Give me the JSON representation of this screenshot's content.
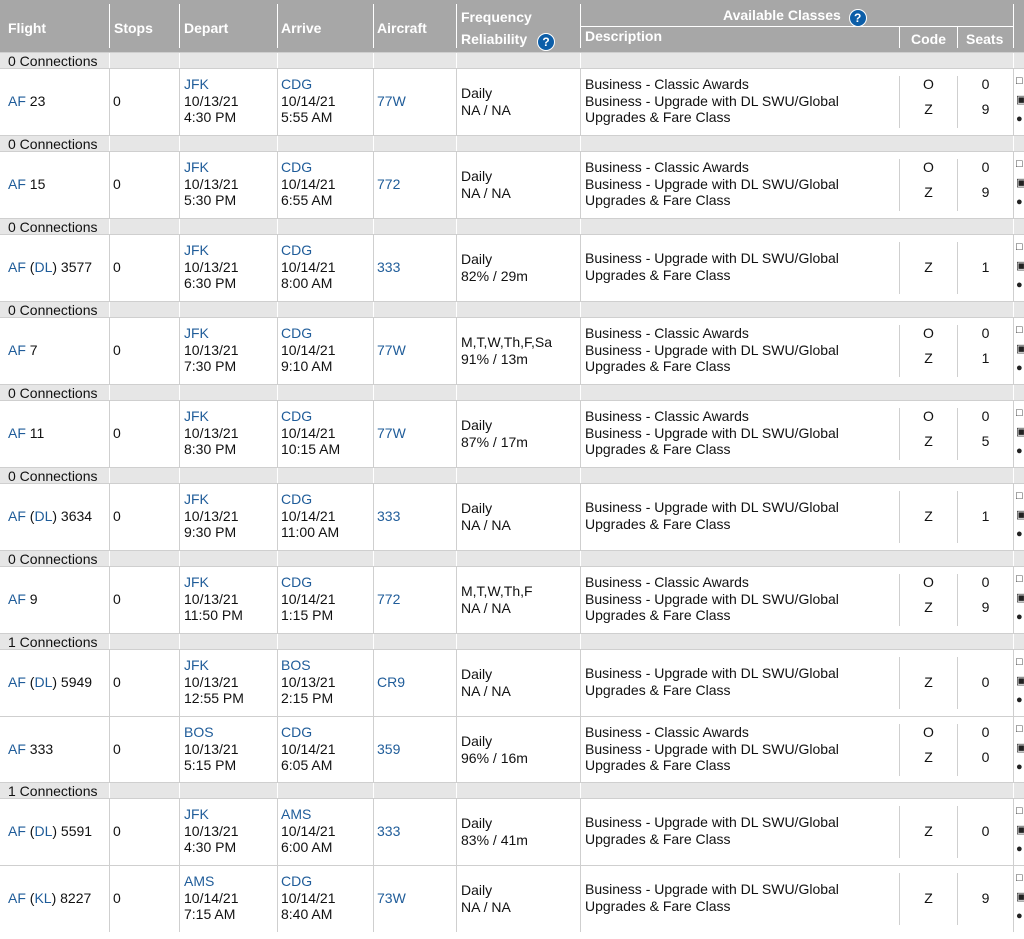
{
  "header": {
    "flight": "Flight",
    "stops": "Stops",
    "depart": "Depart",
    "arrive": "Arrive",
    "aircraft": "Aircraft",
    "frequency": "Frequency",
    "reliability": "Reliability",
    "available_classes": "Available Classes",
    "description": "Description",
    "code": "Code",
    "seats": "Seats",
    "help_glyph": "?"
  },
  "groups": [
    {
      "label": "0 Connections",
      "flights": [
        {
          "airline": "AF",
          "operator": "",
          "number": "23",
          "stops": "0",
          "dep_airport": "JFK",
          "dep_date": "10/13/21",
          "dep_time": "4:30 PM",
          "arr_airport": "CDG",
          "arr_date": "10/14/21",
          "arr_time": "5:55 AM",
          "aircraft": "77W",
          "frequency": "Daily",
          "reliability": "NA / NA",
          "desc": [
            "Business - Classic Awards",
            "Business - Upgrade with DL SWU/Global",
            "Upgrades & Fare Class"
          ],
          "classes": [
            {
              "code": "O",
              "seats": "0"
            },
            {
              "code": "Z",
              "seats": "9"
            }
          ]
        }
      ]
    },
    {
      "label": "0 Connections",
      "flights": [
        {
          "airline": "AF",
          "operator": "",
          "number": "15",
          "stops": "0",
          "dep_airport": "JFK",
          "dep_date": "10/13/21",
          "dep_time": "5:30 PM",
          "arr_airport": "CDG",
          "arr_date": "10/14/21",
          "arr_time": "6:55 AM",
          "aircraft": "772",
          "frequency": "Daily",
          "reliability": "NA / NA",
          "desc": [
            "Business - Classic Awards",
            "Business - Upgrade with DL SWU/Global",
            "Upgrades & Fare Class"
          ],
          "classes": [
            {
              "code": "O",
              "seats": "0"
            },
            {
              "code": "Z",
              "seats": "9"
            }
          ]
        }
      ]
    },
    {
      "label": "0 Connections",
      "flights": [
        {
          "airline": "AF",
          "operator": "DL",
          "number": "3577",
          "stops": "0",
          "dep_airport": "JFK",
          "dep_date": "10/13/21",
          "dep_time": "6:30 PM",
          "arr_airport": "CDG",
          "arr_date": "10/14/21",
          "arr_time": "8:00 AM",
          "aircraft": "333",
          "frequency": "Daily",
          "reliability": "82% / 29m",
          "desc": [
            "Business - Upgrade with DL SWU/Global",
            "Upgrades & Fare Class"
          ],
          "classes": [
            {
              "code": "Z",
              "seats": "1"
            }
          ]
        }
      ]
    },
    {
      "label": "0 Connections",
      "flights": [
        {
          "airline": "AF",
          "operator": "",
          "number": "7",
          "stops": "0",
          "dep_airport": "JFK",
          "dep_date": "10/13/21",
          "dep_time": "7:30 PM",
          "arr_airport": "CDG",
          "arr_date": "10/14/21",
          "arr_time": "9:10 AM",
          "aircraft": "77W",
          "frequency": "M,T,W,Th,F,Sa",
          "reliability": "91% / 13m",
          "desc": [
            "Business - Classic Awards",
            "Business - Upgrade with DL SWU/Global",
            "Upgrades & Fare Class"
          ],
          "classes": [
            {
              "code": "O",
              "seats": "0"
            },
            {
              "code": "Z",
              "seats": "1"
            }
          ]
        }
      ]
    },
    {
      "label": "0 Connections",
      "flights": [
        {
          "airline": "AF",
          "operator": "",
          "number": "11",
          "stops": "0",
          "dep_airport": "JFK",
          "dep_date": "10/13/21",
          "dep_time": "8:30 PM",
          "arr_airport": "CDG",
          "arr_date": "10/14/21",
          "arr_time": "10:15 AM",
          "aircraft": "77W",
          "frequency": "Daily",
          "reliability": "87% / 17m",
          "desc": [
            "Business - Classic Awards",
            "Business - Upgrade with DL SWU/Global",
            "Upgrades & Fare Class"
          ],
          "classes": [
            {
              "code": "O",
              "seats": "0"
            },
            {
              "code": "Z",
              "seats": "5"
            }
          ]
        }
      ]
    },
    {
      "label": "0 Connections",
      "flights": [
        {
          "airline": "AF",
          "operator": "DL",
          "number": "3634",
          "stops": "0",
          "dep_airport": "JFK",
          "dep_date": "10/13/21",
          "dep_time": "9:30 PM",
          "arr_airport": "CDG",
          "arr_date": "10/14/21",
          "arr_time": "11:00 AM",
          "aircraft": "333",
          "frequency": "Daily",
          "reliability": "NA / NA",
          "desc": [
            "Business - Upgrade with DL SWU/Global",
            "Upgrades & Fare Class"
          ],
          "classes": [
            {
              "code": "Z",
              "seats": "1"
            }
          ]
        }
      ]
    },
    {
      "label": "0 Connections",
      "flights": [
        {
          "airline": "AF",
          "operator": "",
          "number": "9",
          "stops": "0",
          "dep_airport": "JFK",
          "dep_date": "10/13/21",
          "dep_time": "11:50 PM",
          "arr_airport": "CDG",
          "arr_date": "10/14/21",
          "arr_time": "1:15 PM",
          "aircraft": "772",
          "frequency": "M,T,W,Th,F",
          "reliability": "NA / NA",
          "desc": [
            "Business - Classic Awards",
            "Business - Upgrade with DL SWU/Global",
            "Upgrades & Fare Class"
          ],
          "classes": [
            {
              "code": "O",
              "seats": "0"
            },
            {
              "code": "Z",
              "seats": "9"
            }
          ]
        }
      ]
    },
    {
      "label": "1 Connections",
      "flights": [
        {
          "airline": "AF",
          "operator": "DL",
          "number": "5949",
          "stops": "0",
          "dep_airport": "JFK",
          "dep_date": "10/13/21",
          "dep_time": "12:55 PM",
          "arr_airport": "BOS",
          "arr_date": "10/13/21",
          "arr_time": "2:15 PM",
          "aircraft": "CR9",
          "frequency": "Daily",
          "reliability": "NA / NA",
          "desc": [
            "Business - Upgrade with DL SWU/Global",
            "Upgrades & Fare Class"
          ],
          "classes": [
            {
              "code": "Z",
              "seats": "0"
            }
          ]
        },
        {
          "airline": "AF",
          "operator": "",
          "number": "333",
          "stops": "0",
          "dep_airport": "BOS",
          "dep_date": "10/13/21",
          "dep_time": "5:15 PM",
          "arr_airport": "CDG",
          "arr_date": "10/14/21",
          "arr_time": "6:05 AM",
          "aircraft": "359",
          "frequency": "Daily",
          "reliability": "96% / 16m",
          "desc": [
            "Business - Classic Awards",
            "Business - Upgrade with DL SWU/Global",
            "Upgrades & Fare Class"
          ],
          "classes": [
            {
              "code": "O",
              "seats": "0"
            },
            {
              "code": "Z",
              "seats": "0"
            }
          ]
        }
      ]
    },
    {
      "label": "1 Connections",
      "flights": [
        {
          "airline": "AF",
          "operator": "DL",
          "number": "5591",
          "stops": "0",
          "dep_airport": "JFK",
          "dep_date": "10/13/21",
          "dep_time": "4:30 PM",
          "arr_airport": "AMS",
          "arr_date": "10/14/21",
          "arr_time": "6:00 AM",
          "aircraft": "333",
          "frequency": "Daily",
          "reliability": "83% / 41m",
          "desc": [
            "Business - Upgrade with DL SWU/Global",
            "Upgrades & Fare Class"
          ],
          "classes": [
            {
              "code": "Z",
              "seats": "0"
            }
          ]
        },
        {
          "airline": "AF",
          "operator": "KL",
          "number": "8227",
          "stops": "0",
          "dep_airport": "AMS",
          "dep_date": "10/14/21",
          "dep_time": "7:15 AM",
          "arr_airport": "CDG",
          "arr_date": "10/14/21",
          "arr_time": "8:40 AM",
          "aircraft": "73W",
          "frequency": "Daily",
          "reliability": "NA / NA",
          "desc": [
            "Business - Upgrade with DL SWU/Global",
            "Upgrades & Fare Class"
          ],
          "classes": [
            {
              "code": "Z",
              "seats": "9"
            }
          ]
        }
      ]
    }
  ],
  "colors": {
    "header_bg": "#a7a7a7",
    "group_bg": "#e6e6e6",
    "link": "#1f5c99",
    "help_icon": "#0c5ea8"
  }
}
